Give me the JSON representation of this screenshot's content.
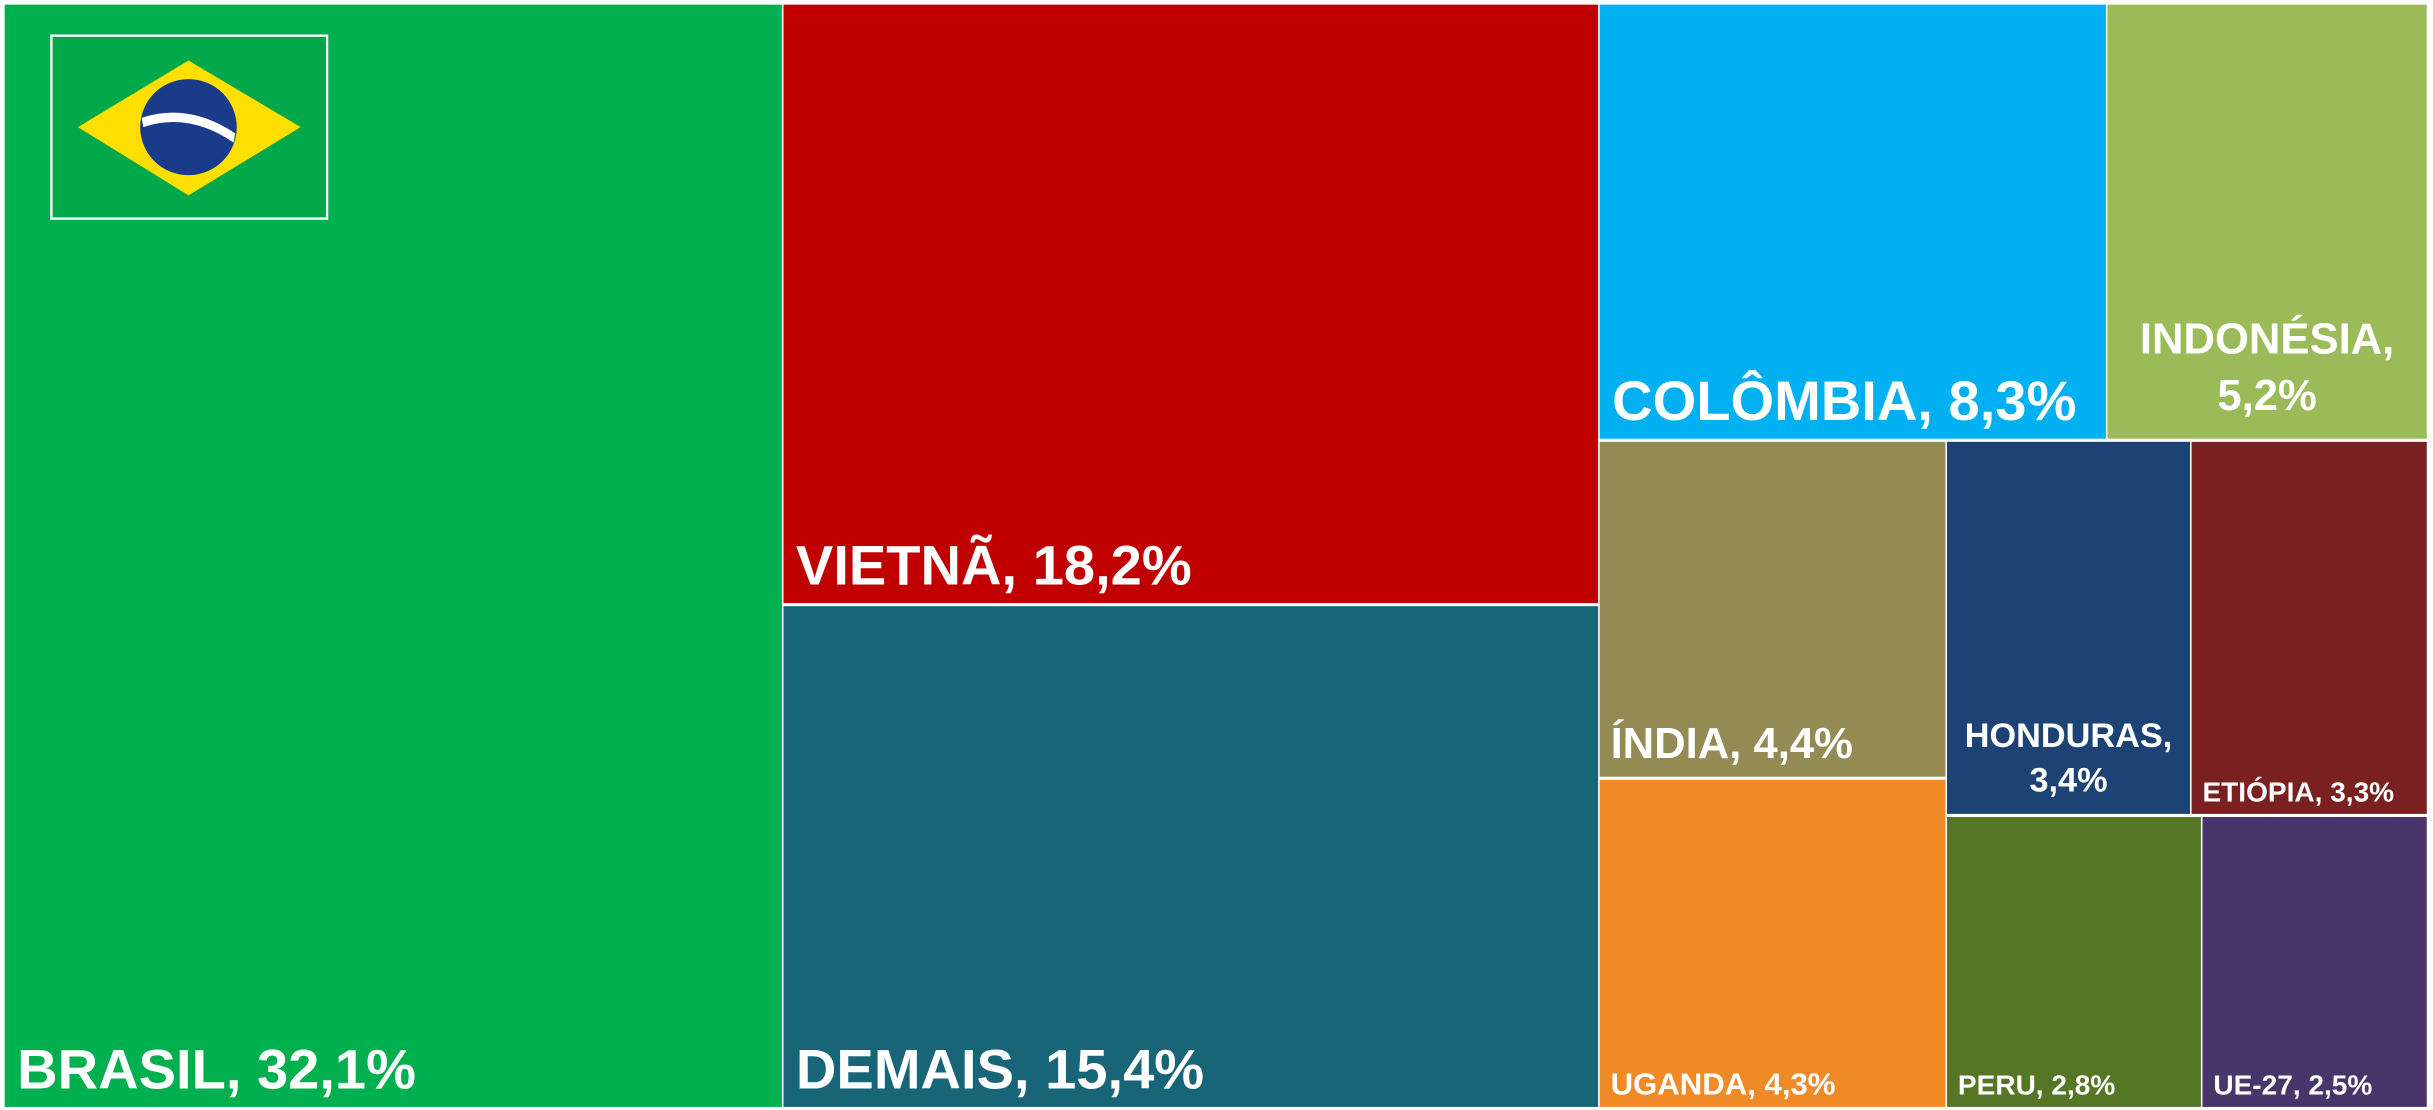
{
  "chart_data": {
    "type": "treemap",
    "values": [
      32.1,
      18.2,
      15.4,
      8.3,
      5.2,
      4.4,
      3.4,
      3.3,
      4.3,
      2.8,
      2.5
    ],
    "value_labels": [
      "BRASIL, 32,1%",
      "VIETNÃ, 18,2%",
      "DEMAIS, 15,4%",
      "COLÔMBIA, 8,3%",
      "INDONÉSIA, 5,2%",
      "ÍNDIA, 4,4%",
      "HONDURAS, 3,4%",
      "ETIÓPIA, 3,3%",
      "UGANDA, 4,3%",
      "PERU, 2,8%",
      "UE-27, 2,5%"
    ],
    "colors": [
      "#00b04f",
      "#c00000",
      "#176577",
      "#00b0f0",
      "#9bbb59",
      "#948a54",
      "#1d4274",
      "#7a2020",
      "#f08a26",
      "#557624",
      "#48356a"
    ]
  }
}
